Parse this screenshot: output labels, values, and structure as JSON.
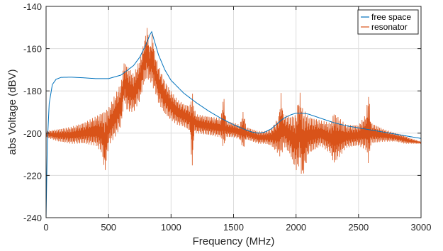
{
  "chart_data": {
    "type": "line",
    "title": "",
    "xlabel": "Frequency (MHz)",
    "ylabel": "abs Voltage (dBV)",
    "xlim": [
      0,
      3000
    ],
    "ylim": [
      -240,
      -140
    ],
    "xticks": [
      0,
      500,
      1000,
      1500,
      2000,
      2500,
      3000
    ],
    "yticks": [
      -240,
      -220,
      -200,
      -180,
      -160,
      -140
    ],
    "xtick_labels": [
      "0",
      "500",
      "1000",
      "1500",
      "2000",
      "2500",
      "3000"
    ],
    "ytick_labels": [
      "-240",
      "-220",
      "-200",
      "-180",
      "-160",
      "-140"
    ],
    "grid": true,
    "legend": {
      "placement": "top-right"
    },
    "series": [
      {
        "name": "free space",
        "color": "#0072BD",
        "x": [
          0,
          10,
          25,
          50,
          80,
          120,
          200,
          300,
          400,
          500,
          600,
          700,
          750,
          800,
          830,
          845,
          860,
          900,
          950,
          1000,
          1100,
          1200,
          1300,
          1400,
          1500,
          1600,
          1650,
          1700,
          1750,
          1800,
          1850,
          1900,
          1950,
          2000,
          2050,
          2100,
          2200,
          2300,
          2400,
          2500,
          2600,
          2700,
          2800,
          2900,
          3000
        ],
        "y": [
          -240,
          -205,
          -186,
          -177,
          -174.5,
          -173.6,
          -173.5,
          -173.8,
          -174.2,
          -174.2,
          -172.5,
          -168,
          -164,
          -158,
          -153.5,
          -152,
          -155,
          -163,
          -170,
          -175,
          -181,
          -185.5,
          -189.5,
          -193,
          -196,
          -198.5,
          -199.5,
          -200,
          -199.5,
          -198,
          -195.5,
          -193,
          -191.5,
          -190.5,
          -190.5,
          -191,
          -193,
          -195,
          -196.5,
          -197.5,
          -198.5,
          -199.5,
          -200.5,
          -201.5,
          -202.5
        ]
      },
      {
        "name": "resonator",
        "color": "#D95319",
        "envelope": {
          "x": [
            0,
            100,
            200,
            300,
            400,
            450,
            470,
            500,
            550,
            600,
            625,
            650,
            700,
            750,
            790,
            810,
            830,
            850,
            870,
            900,
            950,
            1000,
            1050,
            1100,
            1150,
            1170,
            1185,
            1200,
            1300,
            1400,
            1420,
            1440,
            1500,
            1550,
            1580,
            1600,
            1650,
            1700,
            1750,
            1800,
            1860,
            1880,
            1900,
            1950,
            2000,
            2030,
            2050,
            2100,
            2150,
            2200,
            2280,
            2300,
            2400,
            2500,
            2560,
            2580,
            2600,
            2700,
            2800,
            2870,
            2900,
            3000
          ],
          "upper": [
            -199,
            -198,
            -197,
            -195,
            -192,
            -190,
            -189,
            -188,
            -182,
            -176,
            -166,
            -168,
            -172,
            -165,
            -155,
            -149,
            -160,
            -152,
            -162,
            -168,
            -175,
            -180,
            -184,
            -186,
            -187,
            -180,
            -188,
            -191,
            -192,
            -193,
            -181,
            -194,
            -195,
            -196,
            -189,
            -197,
            -198,
            -199,
            -199,
            -198,
            -192,
            -181,
            -191,
            -192,
            -191,
            -180,
            -188,
            -192,
            -193,
            -194,
            -195,
            -190,
            -196,
            -196,
            -191,
            -180,
            -195,
            -198,
            -200,
            -201,
            -202,
            -204
          ],
          "lower": [
            -202,
            -204,
            -205,
            -205,
            -206,
            -210,
            -220,
            -206,
            -202,
            -197,
            -185,
            -190,
            -190,
            -185,
            -175,
            -175,
            -175,
            -178,
            -180,
            -186,
            -191,
            -194,
            -196,
            -197,
            -199,
            -218,
            -200,
            -200,
            -201,
            -202,
            -208,
            -202,
            -202,
            -203,
            -208,
            -203,
            -204,
            -205,
            -205,
            -206,
            -210,
            -212,
            -206,
            -210,
            -218,
            -215,
            -222,
            -210,
            -208,
            -206,
            -210,
            -215,
            -207,
            -206,
            -208,
            -215,
            -205,
            -204,
            -204,
            -205,
            -205,
            -205
          ]
        }
      }
    ]
  }
}
